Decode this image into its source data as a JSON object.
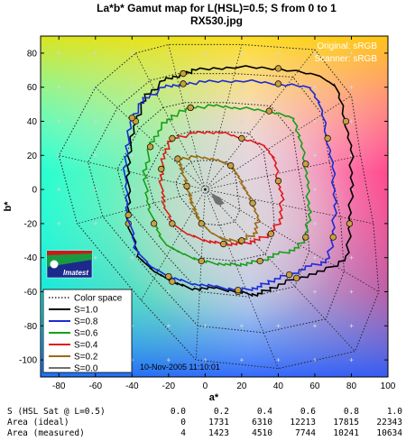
{
  "header": {
    "title_line1": "La*b* Gamut map for L(HSL)=0.5; S from 0 to 1",
    "title_line2": "RX530.jpg"
  },
  "annotations": {
    "original": "Original: sRGB",
    "scanner": "Scanner: sRGB",
    "datestamp": "10-Nov-2005 11:10:01"
  },
  "logo": {
    "text": "Imatest"
  },
  "chart_data": {
    "type": "line",
    "title": "La*b* Gamut map for L(HSL)=0.5; S from 0 to 1",
    "subtitle": "RX530.jpg",
    "xlabel": "a*",
    "ylabel": "b*",
    "xlim": [
      -90,
      100
    ],
    "ylim": [
      -110,
      90
    ],
    "xticks": [
      -80,
      -60,
      -40,
      -20,
      0,
      20,
      40,
      60,
      80,
      100
    ],
    "yticks": [
      -100,
      -80,
      -60,
      -40,
      -20,
      0,
      20,
      40,
      60,
      80
    ],
    "legend_position": "bottom-left",
    "legend": [
      "Color space",
      "S=1.0",
      "S=0.8",
      "S=0.6",
      "S=0.4",
      "S=0.2",
      "S=0.0"
    ],
    "color_space_rings": [
      {
        "name": "Color space",
        "points": [
          [
            -38,
            80
          ],
          [
            -20,
            85
          ],
          [
            20,
            85
          ],
          [
            60,
            82
          ],
          [
            80,
            55
          ],
          [
            85,
            20
          ],
          [
            92,
            -20
          ],
          [
            95,
            -60
          ],
          [
            82,
            -95
          ],
          [
            40,
            -105
          ],
          [
            -5,
            -100
          ],
          [
            -35,
            -65
          ],
          [
            -70,
            -20
          ],
          [
            -80,
            20
          ],
          [
            -60,
            60
          ],
          [
            -38,
            80
          ]
        ]
      },
      {
        "name": "Color space",
        "points": [
          [
            -30,
            64
          ],
          [
            -15,
            68
          ],
          [
            16,
            68
          ],
          [
            48,
            66
          ],
          [
            64,
            44
          ],
          [
            68,
            16
          ],
          [
            74,
            -16
          ],
          [
            76,
            -48
          ],
          [
            66,
            -76
          ],
          [
            32,
            -84
          ],
          [
            -4,
            -80
          ],
          [
            -28,
            -52
          ],
          [
            -56,
            -16
          ],
          [
            -64,
            16
          ],
          [
            -48,
            48
          ],
          [
            -30,
            64
          ]
        ]
      },
      {
        "name": "Color space",
        "points": [
          [
            -23,
            48
          ],
          [
            -11,
            51
          ],
          [
            12,
            51
          ],
          [
            36,
            49
          ],
          [
            48,
            33
          ],
          [
            51,
            12
          ],
          [
            55,
            -12
          ],
          [
            57,
            -36
          ],
          [
            49,
            -57
          ],
          [
            24,
            -63
          ],
          [
            -3,
            -60
          ],
          [
            -21,
            -39
          ],
          [
            -42,
            -12
          ],
          [
            -48,
            12
          ],
          [
            -36,
            36
          ],
          [
            -23,
            48
          ]
        ]
      },
      {
        "name": "Color space",
        "points": [
          [
            -15,
            32
          ],
          [
            -8,
            34
          ],
          [
            8,
            34
          ],
          [
            24,
            33
          ],
          [
            32,
            22
          ],
          [
            34,
            8
          ],
          [
            37,
            -8
          ],
          [
            38,
            -24
          ],
          [
            33,
            -38
          ],
          [
            16,
            -42
          ],
          [
            -2,
            -40
          ],
          [
            -14,
            -26
          ],
          [
            -28,
            -8
          ],
          [
            -32,
            8
          ],
          [
            -24,
            24
          ],
          [
            -15,
            32
          ]
        ]
      },
      {
        "name": "Color space",
        "points": [
          [
            -8,
            16
          ],
          [
            -4,
            17
          ],
          [
            4,
            17
          ],
          [
            12,
            16
          ],
          [
            16,
            11
          ],
          [
            17,
            4
          ],
          [
            18,
            -4
          ],
          [
            19,
            -12
          ],
          [
            16,
            -19
          ],
          [
            8,
            -21
          ],
          [
            -1,
            -20
          ],
          [
            -7,
            -13
          ],
          [
            -14,
            -4
          ],
          [
            -16,
            4
          ],
          [
            -12,
            12
          ],
          [
            -8,
            16
          ]
        ]
      }
    ],
    "series": [
      {
        "name": "S=1.0",
        "color": "#000000",
        "points": [
          [
            -12,
            68
          ],
          [
            -5,
            70
          ],
          [
            15,
            72
          ],
          [
            40,
            71
          ],
          [
            62,
            67
          ],
          [
            72,
            60
          ],
          [
            77,
            40
          ],
          [
            80,
            20
          ],
          [
            80,
            0
          ],
          [
            79,
            -20
          ],
          [
            78,
            -40
          ],
          [
            65,
            -48
          ],
          [
            50,
            -52
          ],
          [
            36,
            -58
          ],
          [
            28,
            -62
          ],
          [
            18,
            -60
          ],
          [
            5,
            -58
          ],
          [
            -8,
            -58
          ],
          [
            -18,
            -54
          ],
          [
            -28,
            -48
          ],
          [
            -36,
            -40
          ],
          [
            -42,
            -20
          ],
          [
            -42,
            0
          ],
          [
            -42,
            20
          ],
          [
            -38,
            40
          ],
          [
            -32,
            55
          ],
          [
            -22,
            64
          ],
          [
            -12,
            68
          ]
        ]
      },
      {
        "name": "S=0.8",
        "color": "#1a2bd6",
        "points": [
          [
            -12,
            62
          ],
          [
            0,
            63
          ],
          [
            20,
            64
          ],
          [
            40,
            62
          ],
          [
            57,
            60
          ],
          [
            63,
            50
          ],
          [
            67,
            30
          ],
          [
            70,
            10
          ],
          [
            71,
            -10
          ],
          [
            70,
            -28
          ],
          [
            67,
            -42
          ],
          [
            58,
            -45
          ],
          [
            46,
            -50
          ],
          [
            35,
            -54
          ],
          [
            28,
            -58
          ],
          [
            18,
            -59
          ],
          [
            5,
            -57
          ],
          [
            -8,
            -55
          ],
          [
            -20,
            -51
          ],
          [
            -30,
            -45
          ],
          [
            -38,
            -35
          ],
          [
            -42,
            -15
          ],
          [
            -44,
            5
          ],
          [
            -43,
            25
          ],
          [
            -40,
            42
          ],
          [
            -33,
            53
          ],
          [
            -22,
            60
          ],
          [
            -12,
            62
          ]
        ]
      },
      {
        "name": "S=0.6",
        "color": "#16a016",
        "points": [
          [
            -8,
            48
          ],
          [
            5,
            49
          ],
          [
            18,
            48
          ],
          [
            35,
            46
          ],
          [
            48,
            42
          ],
          [
            52,
            30
          ],
          [
            55,
            15
          ],
          [
            56,
            0
          ],
          [
            57,
            -15
          ],
          [
            55,
            -28
          ],
          [
            50,
            -35
          ],
          [
            40,
            -38
          ],
          [
            30,
            -42
          ],
          [
            20,
            -44
          ],
          [
            10,
            -44
          ],
          [
            -2,
            -42
          ],
          [
            -12,
            -38
          ],
          [
            -22,
            -32
          ],
          [
            -28,
            -20
          ],
          [
            -32,
            -5
          ],
          [
            -33,
            10
          ],
          [
            -30,
            25
          ],
          [
            -25,
            36
          ],
          [
            -18,
            43
          ],
          [
            -8,
            48
          ]
        ]
      },
      {
        "name": "S=0.4",
        "color": "#e01818",
        "points": [
          [
            -18,
            30
          ],
          [
            -5,
            33
          ],
          [
            8,
            34
          ],
          [
            20,
            30
          ],
          [
            32,
            26
          ],
          [
            38,
            18
          ],
          [
            40,
            5
          ],
          [
            42,
            -5
          ],
          [
            41,
            -18
          ],
          [
            36,
            -26
          ],
          [
            28,
            -30
          ],
          [
            20,
            -32
          ],
          [
            10,
            -32
          ],
          [
            0,
            -30
          ],
          [
            -10,
            -26
          ],
          [
            -18,
            -20
          ],
          [
            -22,
            -10
          ],
          [
            -24,
            0
          ],
          [
            -24,
            12
          ],
          [
            -22,
            22
          ],
          [
            -18,
            30
          ]
        ]
      },
      {
        "name": "S=0.2",
        "color": "#9a6a10",
        "points": [
          [
            -15,
            18
          ],
          [
            -5,
            19
          ],
          [
            5,
            18
          ],
          [
            14,
            14
          ],
          [
            18,
            8
          ],
          [
            22,
            0
          ],
          [
            26,
            -8
          ],
          [
            29,
            -18
          ],
          [
            27,
            -26
          ],
          [
            20,
            -30
          ],
          [
            12,
            -30
          ],
          [
            4,
            -26
          ],
          [
            -2,
            -20
          ],
          [
            -6,
            -12
          ],
          [
            -8,
            -5
          ],
          [
            -10,
            2
          ],
          [
            -12,
            10
          ],
          [
            -15,
            18
          ]
        ]
      },
      {
        "name": "S=0.0",
        "color": "#707070",
        "points": [
          [
            4,
            -3
          ],
          [
            6,
            -4
          ],
          [
            8,
            -5
          ],
          [
            9,
            -7
          ],
          [
            10,
            -8
          ],
          [
            8,
            -9
          ],
          [
            6,
            -8
          ],
          [
            5,
            -6
          ],
          [
            4,
            -3
          ]
        ]
      }
    ]
  },
  "stats": {
    "columns": [
      "S (HSL Sat @ L=0.5)",
      "0.0",
      "0.2",
      "0.4",
      "0.6",
      "0.8",
      "1.0"
    ],
    "rows": [
      [
        "Area (ideal)",
        "0",
        "1731",
        "6310",
        "12213",
        "17815",
        "22343"
      ],
      [
        "Area (measured)",
        "4",
        "1423",
        "4510",
        "7744",
        "10241",
        "10634"
      ]
    ]
  }
}
